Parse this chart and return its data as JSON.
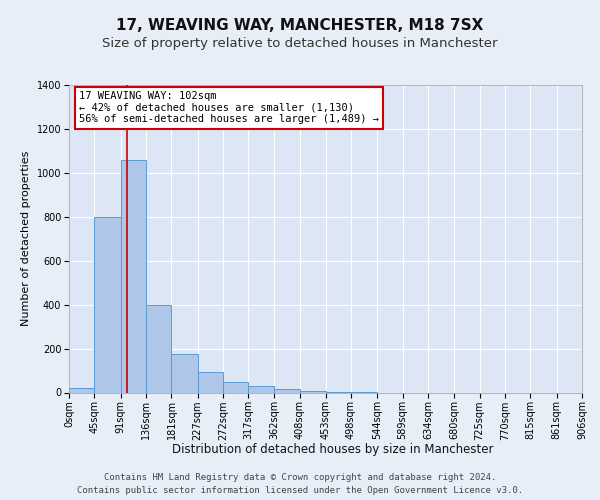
{
  "title": "17, WEAVING WAY, MANCHESTER, M18 7SX",
  "subtitle": "Size of property relative to detached houses in Manchester",
  "xlabel": "Distribution of detached houses by size in Manchester",
  "ylabel": "Number of detached properties",
  "bar_values": [
    20,
    800,
    1060,
    400,
    175,
    95,
    50,
    30,
    15,
    5,
    2,
    1,
    0,
    0,
    0,
    0,
    0,
    0,
    0,
    0
  ],
  "bar_edges": [
    0,
    45,
    91,
    136,
    181,
    227,
    272,
    317,
    362,
    408,
    453,
    498,
    544,
    589,
    634,
    680,
    725,
    770,
    815,
    861,
    906
  ],
  "bar_color": "#aec6e8",
  "bar_edge_color": "#5b9bd5",
  "background_color": "#e8eef8",
  "plot_bg_color": "#dce6f5",
  "grid_color": "#ffffff",
  "property_line_x": 102,
  "property_line_color": "#cc0000",
  "annotation_box_color": "#cc0000",
  "annotation_text": "17 WEAVING WAY: 102sqm\n← 42% of detached houses are smaller (1,130)\n56% of semi-detached houses are larger (1,489) →",
  "ylim": [
    0,
    1400
  ],
  "yticks": [
    0,
    200,
    400,
    600,
    800,
    1000,
    1200,
    1400
  ],
  "tick_labels": [
    "0sqm",
    "45sqm",
    "91sqm",
    "136sqm",
    "181sqm",
    "227sqm",
    "272sqm",
    "317sqm",
    "362sqm",
    "408sqm",
    "453sqm",
    "498sqm",
    "544sqm",
    "589sqm",
    "634sqm",
    "680sqm",
    "725sqm",
    "770sqm",
    "815sqm",
    "861sqm",
    "906sqm"
  ],
  "footer_line1": "Contains HM Land Registry data © Crown copyright and database right 2024.",
  "footer_line2": "Contains public sector information licensed under the Open Government Licence v3.0.",
  "title_fontsize": 11,
  "subtitle_fontsize": 9.5,
  "xlabel_fontsize": 8.5,
  "ylabel_fontsize": 8,
  "tick_fontsize": 7,
  "annotation_fontsize": 7.5,
  "footer_fontsize": 6.5
}
